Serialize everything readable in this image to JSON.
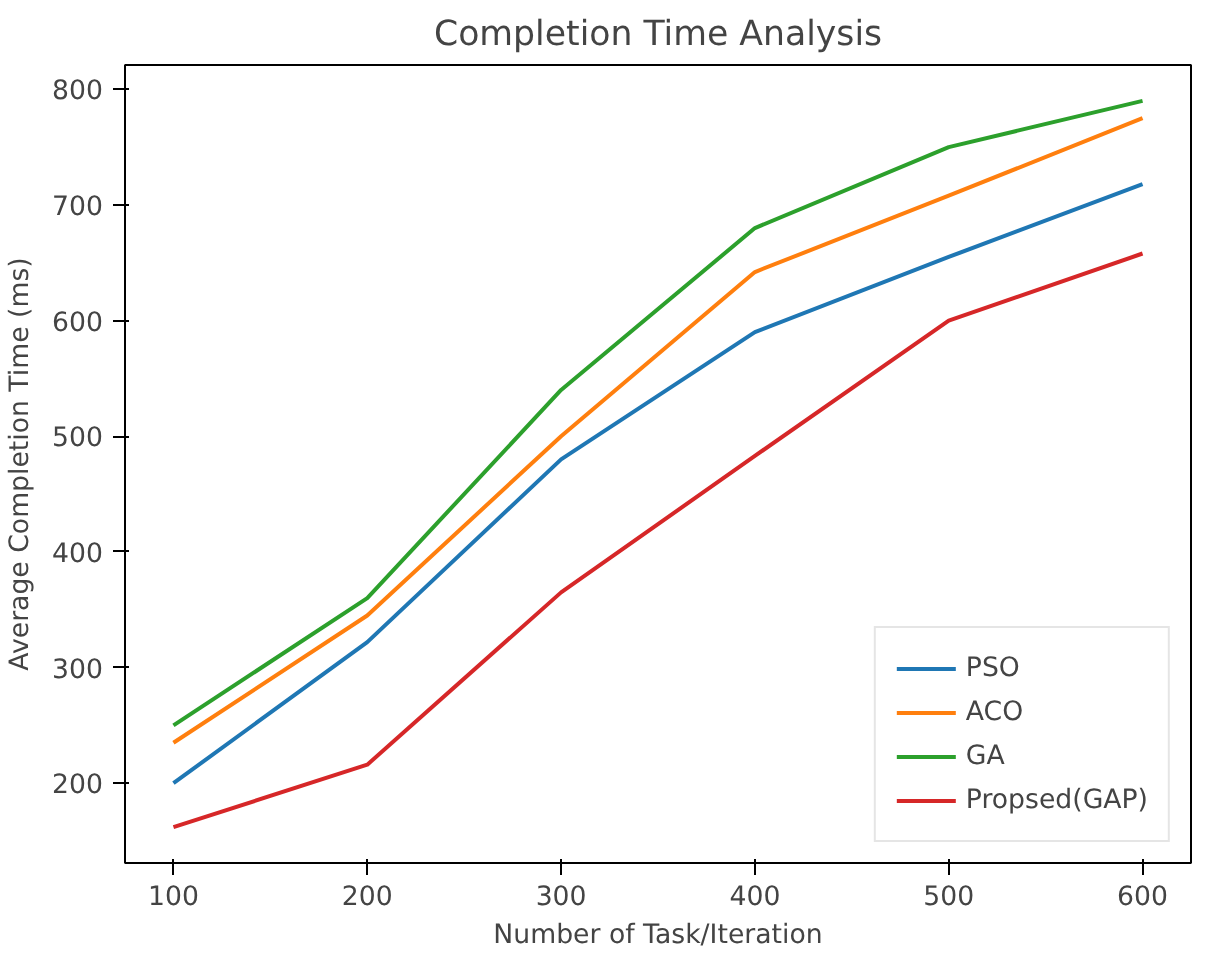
{
  "chart_data": {
    "type": "line",
    "title": "Completion Time Analysis",
    "xlabel": "Number of Task/Iteration",
    "ylabel": "Average Completion Time (ms)",
    "x": [
      100,
      200,
      300,
      400,
      500,
      600
    ],
    "series": [
      {
        "name": "PSO",
        "color": "#1f77b4",
        "values": [
          200,
          322,
          480,
          590,
          655,
          718
        ]
      },
      {
        "name": "ACO",
        "color": "#ff7f0e",
        "values": [
          235,
          345,
          500,
          642,
          708,
          775
        ]
      },
      {
        "name": "GA",
        "color": "#2ca02c",
        "values": [
          250,
          360,
          540,
          680,
          750,
          790
        ]
      },
      {
        "name": "Propsed(GAP)",
        "color": "#d62728",
        "values": [
          162,
          216,
          365,
          483,
          600,
          658
        ]
      }
    ],
    "xlim": [
      75,
      625
    ],
    "ylim": [
      131,
      821
    ],
    "xticks": [
      100,
      200,
      300,
      400,
      500,
      600
    ],
    "yticks": [
      200,
      300,
      400,
      500,
      600,
      700,
      800
    ],
    "grid": false,
    "legend": "bottom right",
    "line_style": "solid",
    "marker": "none"
  }
}
